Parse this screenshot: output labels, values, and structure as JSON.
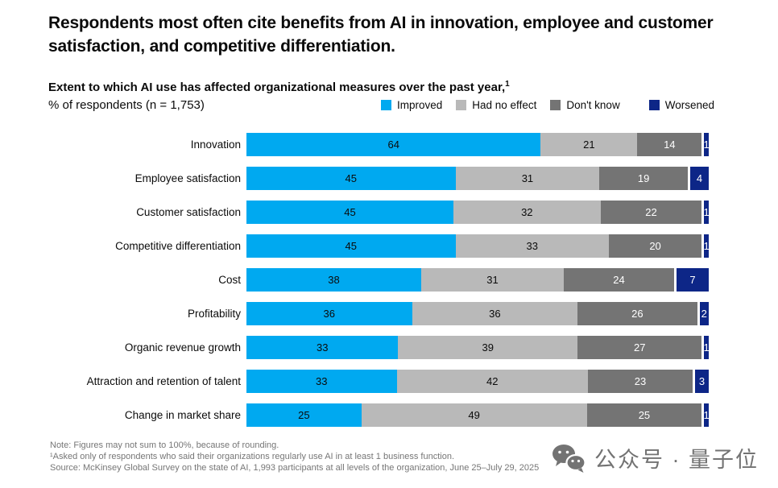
{
  "header": {
    "title": "Respondents most often cite benefits from AI in innovation, employee and customer satisfaction, and competitive differentiation."
  },
  "subtitle": {
    "line1": "Extent to which AI use has affected organizational measures over the past year,",
    "superscript": "1",
    "line2": "% of respondents (n = 1,753)"
  },
  "legend": [
    {
      "label": "Improved",
      "color": "#00A9F0"
    },
    {
      "label": "Had no effect",
      "color": "#B9B9B9"
    },
    {
      "label": "Don't know",
      "color": "#747474"
    },
    {
      "label": "Worsened",
      "color": "#0D2687"
    }
  ],
  "chart_data": {
    "type": "bar",
    "orientation": "horizontal",
    "stacked": true,
    "unit": "% of respondents",
    "title": "Extent to which AI use has affected organizational measures over the past year",
    "categories": [
      "Innovation",
      "Employee satisfaction",
      "Customer satisfaction",
      "Competitive differentiation",
      "Cost",
      "Profitability",
      "Organic revenue growth",
      "Attraction and retention of talent",
      "Change in market share"
    ],
    "series": [
      {
        "name": "Improved",
        "color": "#00A9F0",
        "text_color": "#0b0b0b",
        "values": [
          64,
          45,
          45,
          45,
          38,
          36,
          33,
          33,
          25
        ]
      },
      {
        "name": "Had no effect",
        "color": "#B9B9B9",
        "text_color": "#0b0b0b",
        "values": [
          21,
          31,
          32,
          33,
          31,
          36,
          39,
          42,
          49
        ]
      },
      {
        "name": "Don't know",
        "color": "#747474",
        "text_color": "#ffffff",
        "values": [
          14,
          19,
          22,
          20,
          24,
          26,
          27,
          23,
          25
        ]
      },
      {
        "name": "Worsened",
        "color": "#0D2687",
        "text_color": "#ffffff",
        "values": [
          1,
          4,
          1,
          1,
          7,
          2,
          1,
          3,
          1
        ]
      }
    ],
    "xlim": [
      0,
      100
    ],
    "grid": false,
    "legend_position": "top-right"
  },
  "footnotes": {
    "note": "Note: Figures may not sum to 100%, because of rounding.",
    "footnote1": "¹Asked only of respondents who said their organizations regularly use AI in at least 1 business function.",
    "source": "Source: McKinsey Global Survey on the state of AI, 1,993 participants at all levels of the organization, June 25–July 29, 2025"
  },
  "watermark": {
    "icon": "wechat-icon",
    "text": "公众号 · 量子位"
  }
}
